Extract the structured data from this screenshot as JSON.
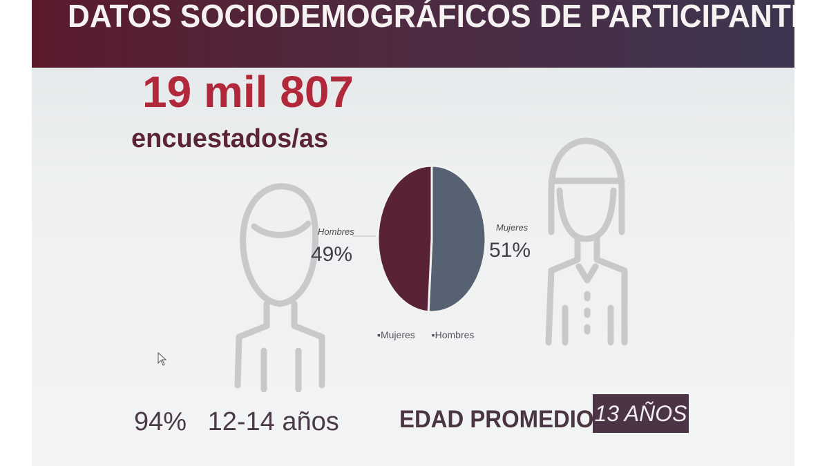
{
  "header": {
    "title": "DATOS SOCIODEMOGRÁFICOS DE PARTICIPANTES"
  },
  "respondents": {
    "number": "19 mil 807",
    "label": "encuestados/as"
  },
  "chart_data": {
    "type": "pie",
    "slices": [
      {
        "name": "Mujeres",
        "label_text": "Mujeres",
        "value": 51,
        "value_text": "51%",
        "color": "#566272"
      },
      {
        "name": "Hombres",
        "label_text": "Hombres",
        "value": 49,
        "value_text": "49%",
        "color": "#5a2236"
      }
    ],
    "legend": {
      "placement": "bottom",
      "items": [
        "Mujeres",
        "Hombres"
      ]
    }
  },
  "age_stat": {
    "percent": "94%",
    "range": "12-14 años"
  },
  "average_age": {
    "label": "EDAD PROMEDIO",
    "value": "13 AÑOS"
  },
  "icons": [
    "male-person-icon",
    "female-person-icon",
    "mouse-cursor-icon"
  ],
  "colors": {
    "header_bg": "#4f2a40",
    "accent_red": "#b0283a",
    "maroon": "#5b2536",
    "badge_bg": "#4c3447"
  }
}
